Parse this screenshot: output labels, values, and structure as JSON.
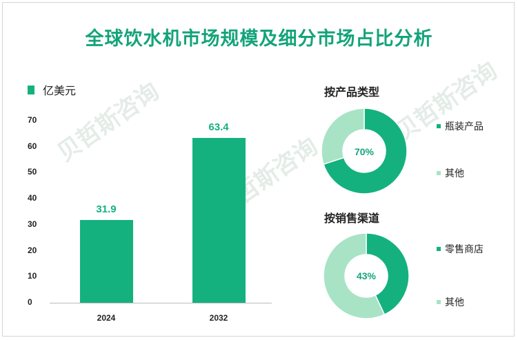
{
  "title": "全球饮水机市场规模及细分市场占比分析",
  "chart_data": [
    {
      "type": "bar",
      "unit": "亿美元",
      "categories": [
        "2024",
        "2032"
      ],
      "values": [
        31.9,
        63.4
      ],
      "value_labels": [
        "31.9",
        "63.4"
      ],
      "ylim": [
        0,
        70
      ],
      "yticks": [
        "0",
        "10",
        "20",
        "30",
        "40",
        "50",
        "60",
        "70"
      ],
      "colors": {
        "bar": "#14b17f"
      }
    },
    {
      "type": "pie",
      "title": "按产品类型",
      "labels": [
        "瓶装产品",
        "其他"
      ],
      "values": [
        70,
        30
      ],
      "center_label": "70%",
      "colors": [
        "#14b17f",
        "#a8e3c6"
      ]
    },
    {
      "type": "pie",
      "title": "按销售渠道",
      "labels": [
        "零售商店",
        "其他"
      ],
      "values": [
        43,
        57
      ],
      "center_label": "43%",
      "colors": [
        "#14b17f",
        "#a8e3c6"
      ]
    }
  ]
}
